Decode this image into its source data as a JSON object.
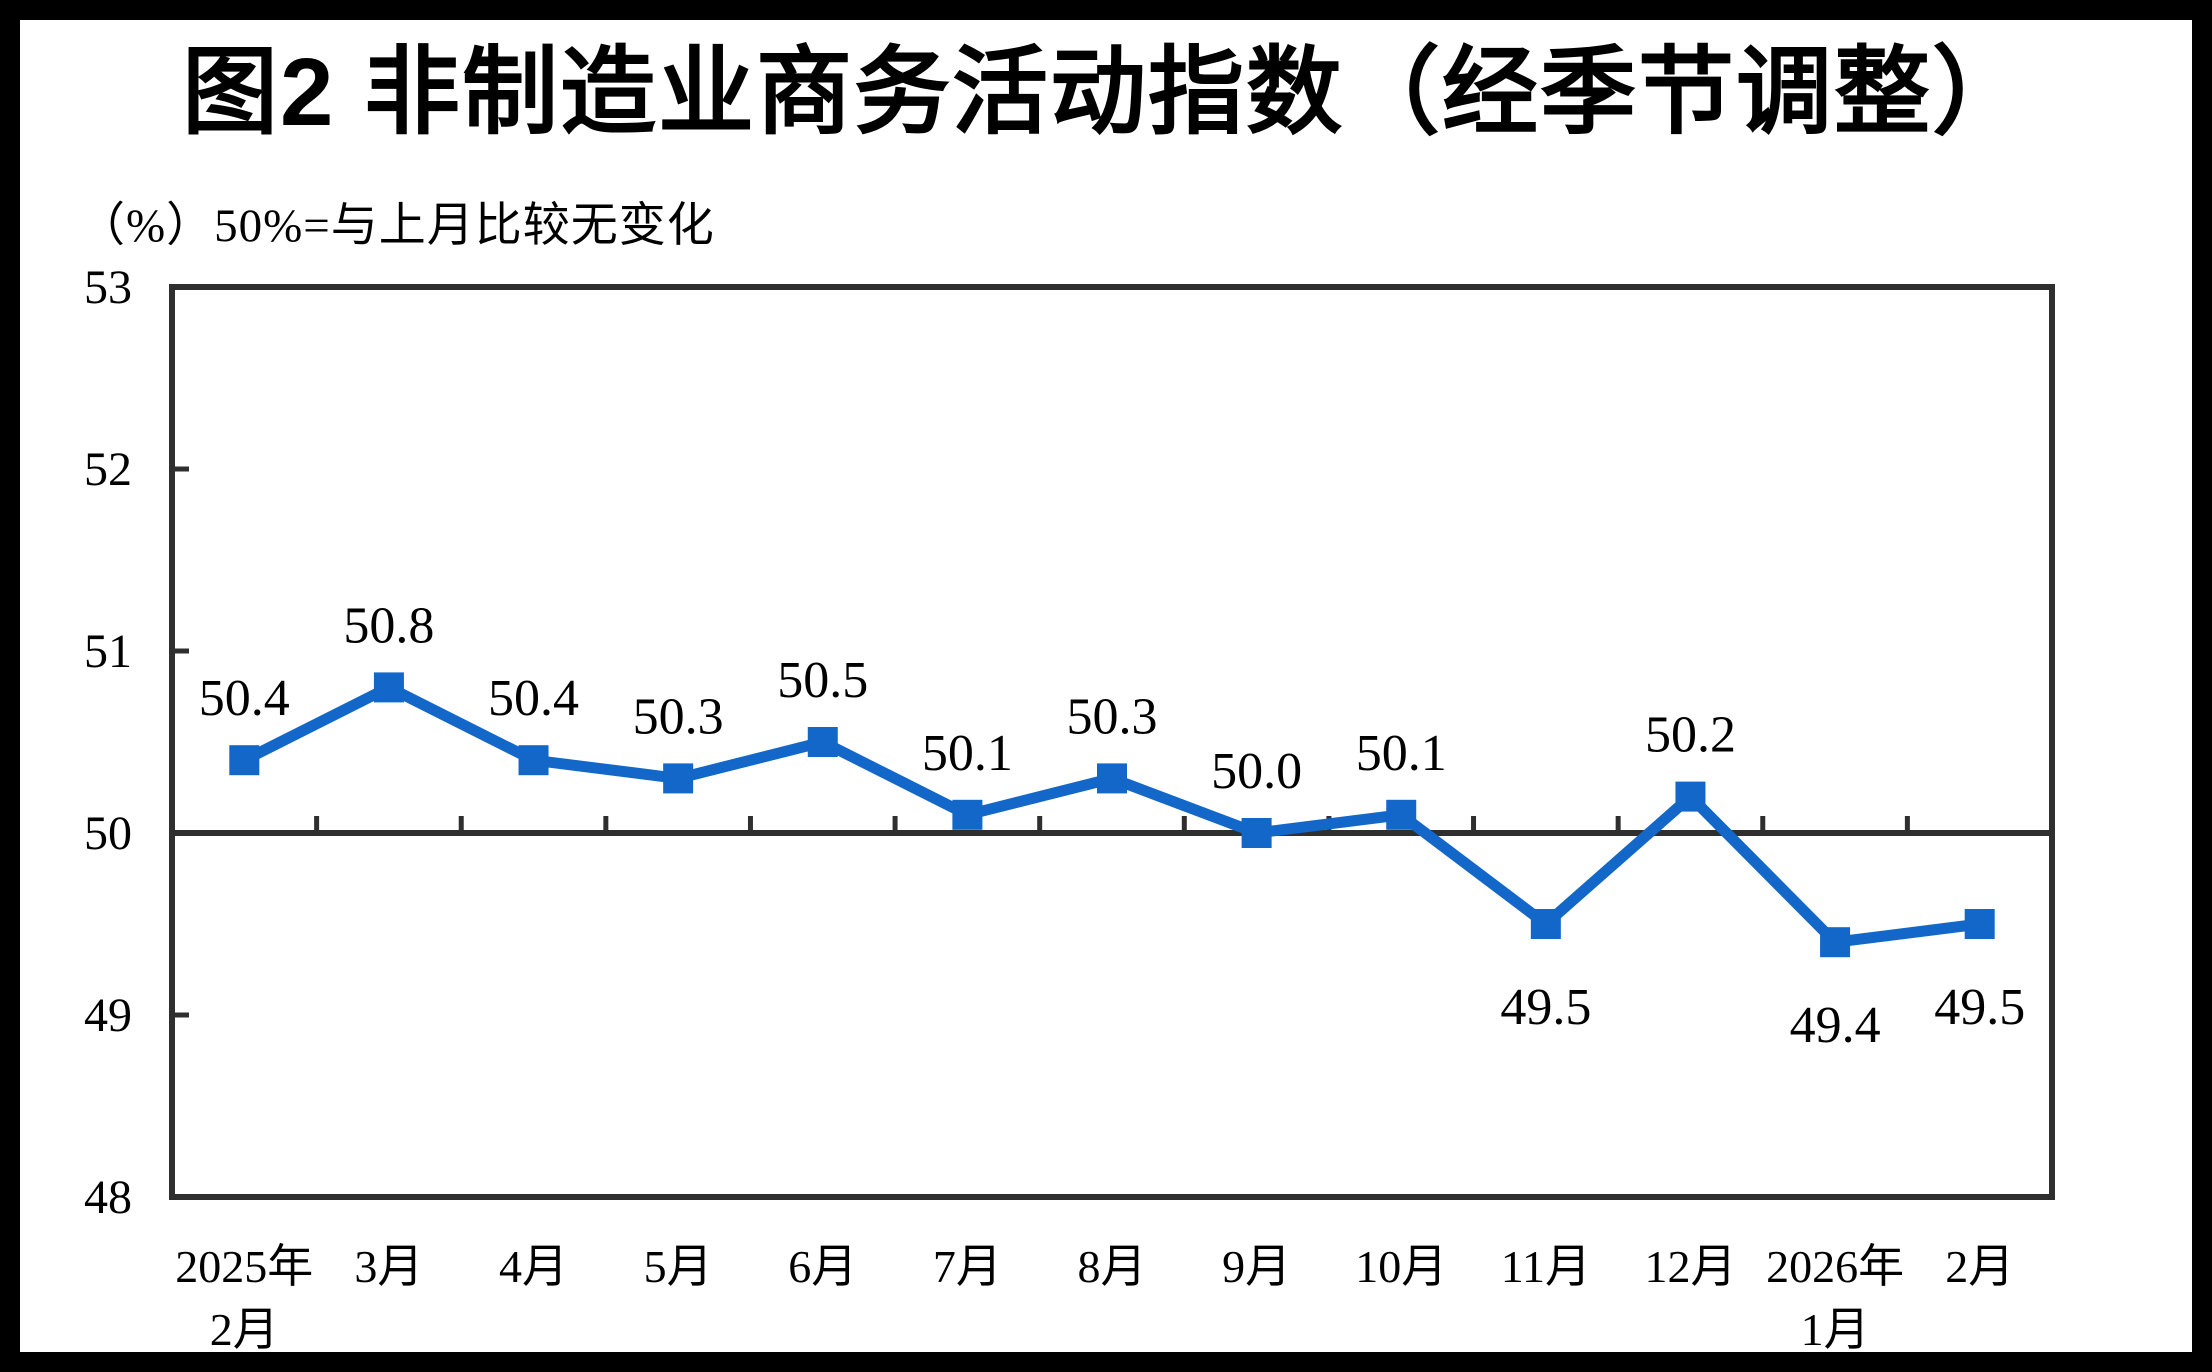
{
  "header": {
    "title": "图2  非制造业商务活动指数（经季节调整）",
    "unit_note": "（%）50%=与上月比较无变化"
  },
  "chart_data": {
    "type": "line",
    "title": "图2  非制造业商务活动指数（经季节调整）",
    "subtitle": "（%）50%=与上月比较无变化",
    "categories": [
      "2025年2月",
      "3月",
      "4月",
      "5月",
      "6月",
      "7月",
      "8月",
      "9月",
      "10月",
      "11月",
      "12月",
      "2026年1月",
      "2月"
    ],
    "category_labels": [
      [
        "2025年",
        "2月"
      ],
      [
        "3月"
      ],
      [
        "4月"
      ],
      [
        "5月"
      ],
      [
        "6月"
      ],
      [
        "7月"
      ],
      [
        "8月"
      ],
      [
        "9月"
      ],
      [
        "10月"
      ],
      [
        "11月"
      ],
      [
        "12月"
      ],
      [
        "2026年",
        "1月"
      ],
      [
        "2月"
      ]
    ],
    "series": [
      {
        "name": "非制造业商务活动指数",
        "values": [
          50.4,
          50.8,
          50.4,
          50.3,
          50.5,
          50.1,
          50.3,
          50.0,
          50.1,
          49.5,
          50.2,
          49.4,
          49.5
        ]
      }
    ],
    "data_labels": [
      "50.4",
      "50.8",
      "50.4",
      "50.3",
      "50.5",
      "50.1",
      "50.3",
      "50.0",
      "50.1",
      "49.5",
      "50.2",
      "49.4",
      "49.5"
    ],
    "labels_below_indices": [
      9,
      11,
      12
    ],
    "ylabel": "",
    "xlabel": "",
    "ylim": [
      48,
      53
    ],
    "yticks": [
      48,
      49,
      50,
      51,
      52,
      53
    ],
    "reference_line": 50,
    "grid": false,
    "legend_position": "none",
    "colors": {
      "line": "#1267C9",
      "marker": "#1267C9",
      "axis": "#2F2F2F",
      "text": "#000000",
      "background": "#FFFFFF",
      "outer_border": "#000000"
    }
  }
}
